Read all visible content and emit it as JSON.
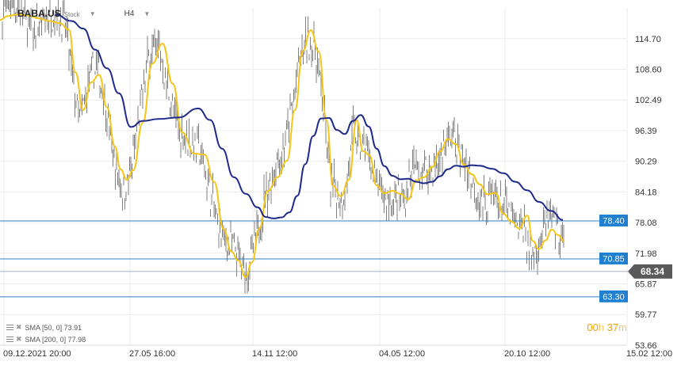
{
  "header": {
    "symbol": "BABA.US",
    "symbol_type": "Stock",
    "timeframe": "H4"
  },
  "indicators": [
    {
      "label": "SMA  [50,  0]  73.91",
      "color": "#f5c518"
    },
    {
      "label": "SMA  [200,  0]  77.98",
      "color": "#1f2a8a"
    }
  ],
  "timer": {
    "hours": "00",
    "h_unit": "h",
    "minutes": "37",
    "m_unit": "m"
  },
  "colors": {
    "candles": "#2b2b2b",
    "sma50": "#f5c518",
    "sma200": "#1f2a8a",
    "level_line": "#2d7fc4",
    "level_tag": "#1f7fd0",
    "price_tag": "#5a5a5a",
    "grid": "#ececec"
  },
  "chart_data": {
    "type": "line",
    "title": "",
    "ylim": [
      53.66,
      120.81
    ],
    "y_ticks": [
      "114.70",
      "108.60",
      "102.49",
      "96.39",
      "90.29",
      "84.18",
      "78.08",
      "71.98",
      "65.87",
      "59.77",
      "53.66"
    ],
    "x_ticks": [
      "09.12.2021  20:00",
      "27.05  16:00",
      "14.11  12:00",
      "04.05  12:00",
      "20.10  12:00",
      "15.02  12:00"
    ],
    "horizontal_levels": [
      {
        "label": "78.40",
        "value": 78.4
      },
      {
        "label": "70.85",
        "value": 70.85
      },
      {
        "label": "63.30",
        "value": 63.3
      }
    ],
    "current_price": {
      "label": "68.34",
      "value": 68.34
    },
    "series": [
      {
        "name": "SMA  [50,  0]",
        "x": [
          0,
          10,
          22,
          35,
          50,
          62,
          75,
          87,
          95,
          105,
          115,
          125,
          135,
          145,
          152,
          160,
          168,
          180,
          192,
          205,
          218,
          230,
          245,
          258,
          270,
          282,
          292,
          300,
          310,
          318,
          327,
          338,
          350,
          362,
          372,
          382,
          392,
          402,
          412,
          420,
          430,
          440,
          450,
          458,
          466,
          475,
          485,
          495,
          505,
          515,
          525,
          535,
          545,
          555,
          565,
          575,
          585,
          595,
          605,
          615,
          625,
          635,
          645,
          655,
          665,
          672,
          680,
          688,
          696,
          704,
          712
        ],
        "y": [
          118.4,
          119.2,
          119.5,
          119.3,
          118.7,
          118.2,
          117.8,
          116.5,
          108,
          100.5,
          106,
          107.5,
          101,
          93.2,
          88.7,
          86.6,
          88.5,
          98,
          109.7,
          113.7,
          105.7,
          96,
          91.8,
          91.6,
          86.2,
          76.8,
          72.3,
          70.6,
          67.2,
          70.2,
          76.9,
          84.4,
          87.1,
          90.4,
          100.5,
          112.2,
          116.4,
          112.1,
          98.4,
          85.4,
          83.3,
          86.6,
          98.4,
          92.3,
          91.5,
          85.5,
          83.9,
          84.4,
          83.8,
          82.7,
          86.5,
          87.1,
          89.1,
          92.2,
          94.7,
          93.7,
          89.6,
          87.7,
          85.7,
          83.7,
          84.0,
          79.8,
          78.3,
          76.9,
          79.5,
          74.4,
          72.8,
          74.5,
          76.7,
          75.6,
          74.3
        ]
      },
      {
        "name": "SMA  [200,  0]",
        "x": [
          70,
          90,
          105,
          120,
          135,
          150,
          165,
          180,
          200,
          225,
          250,
          265,
          280,
          295,
          310,
          325,
          335,
          345,
          355,
          365,
          375,
          385,
          395,
          405,
          415,
          425,
          435,
          445,
          455,
          465,
          475,
          485,
          495,
          505,
          515,
          525,
          535,
          545,
          555,
          565,
          575,
          585,
          595,
          605,
          620,
          635,
          650,
          665,
          680,
          695,
          710
        ],
        "y": [
          119.5,
          118.2,
          116.7,
          112.5,
          108.8,
          103.8,
          97.1,
          98.3,
          98.7,
          99,
          100.8,
          98.5,
          92.8,
          87.1,
          83.8,
          81.1,
          79.2,
          78.9,
          79.1,
          80.1,
          83.4,
          89.7,
          95.3,
          98.8,
          98.9,
          96.5,
          95.7,
          98.3,
          99.5,
          97.2,
          92.8,
          89.3,
          87.4,
          86.7,
          86.8,
          86.2,
          85.9,
          86.2,
          87.3,
          88.7,
          89.4,
          89.2,
          89.5,
          89.4,
          88.8,
          87.9,
          86.2,
          84.5,
          82.2,
          80.4,
          78.6
        ]
      }
    ]
  }
}
